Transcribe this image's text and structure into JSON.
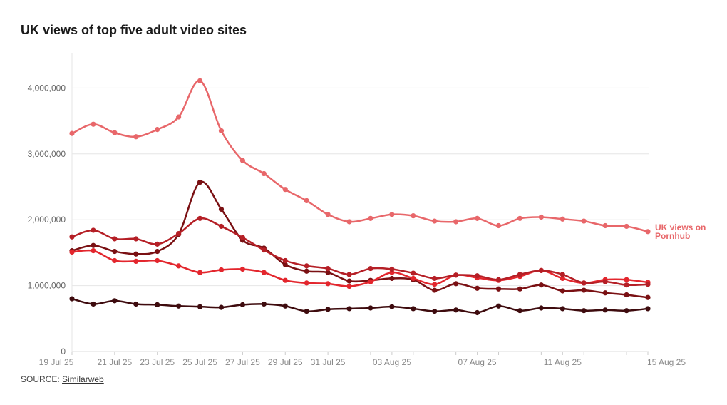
{
  "title": "UK views of top five adult video sites",
  "source_label": "SOURCE:",
  "source_name": "Similarweb",
  "chart_data": {
    "type": "line",
    "title": "UK views of top five adult video sites",
    "xlabel": "",
    "ylabel": "",
    "ylim": [
      0,
      4500000
    ],
    "yticks": [
      0,
      1000000,
      2000000,
      3000000,
      4000000
    ],
    "ytick_labels": [
      "0",
      "1,000,000",
      "2,000,000",
      "3,000,000",
      "4,000,000"
    ],
    "x_tick_labels": [
      {
        "index": 0,
        "label": "19 Jul 25"
      },
      {
        "index": 2,
        "label": "21 Jul 25"
      },
      {
        "index": 4,
        "label": "23 Jul 25"
      },
      {
        "index": 6,
        "label": "25 Jul 25"
      },
      {
        "index": 8,
        "label": "27 Jul 25"
      },
      {
        "index": 10,
        "label": "29 Jul 25"
      },
      {
        "index": 12,
        "label": "31 Jul 25"
      },
      {
        "index": 15,
        "label": "03 Aug 25"
      },
      {
        "index": 19,
        "label": "07 Aug 25"
      },
      {
        "index": 23,
        "label": "11 Aug 25"
      },
      {
        "index": 27,
        "label": "15 Aug 25"
      }
    ],
    "n_points": 28,
    "grid": true,
    "series": [
      {
        "label": "UK views on Pornhub",
        "color": "#e8676a",
        "values": [
          3310000,
          3450000,
          3320000,
          3260000,
          3370000,
          3560000,
          4110000,
          3350000,
          2900000,
          2700000,
          2460000,
          2290000,
          2080000,
          1970000,
          2020000,
          2080000,
          2060000,
          1980000,
          1970000,
          2020000,
          1910000,
          2020000,
          2040000,
          2010000,
          1980000,
          1910000,
          1900000,
          1820000
        ]
      },
      {
        "color": "#b51f26",
        "values": [
          1740000,
          1840000,
          1710000,
          1710000,
          1630000,
          1790000,
          2020000,
          1900000,
          1730000,
          1540000,
          1380000,
          1300000,
          1260000,
          1170000,
          1260000,
          1250000,
          1190000,
          1110000,
          1160000,
          1150000,
          1090000,
          1170000,
          1230000,
          1170000,
          1040000,
          1060000,
          1010000,
          1020000
        ]
      },
      {
        "color": "#e3262d",
        "values": [
          1510000,
          1530000,
          1380000,
          1370000,
          1380000,
          1300000,
          1200000,
          1240000,
          1250000,
          1200000,
          1080000,
          1040000,
          1030000,
          990000,
          1060000,
          1200000,
          1110000,
          1020000,
          1160000,
          1120000,
          1080000,
          1140000,
          1230000,
          1110000,
          1040000,
          1090000,
          1090000,
          1050000
        ]
      },
      {
        "color": "#7a1013",
        "values": [
          1530000,
          1610000,
          1520000,
          1480000,
          1520000,
          1780000,
          2570000,
          2160000,
          1690000,
          1570000,
          1320000,
          1220000,
          1200000,
          1070000,
          1080000,
          1110000,
          1090000,
          930000,
          1030000,
          960000,
          950000,
          950000,
          1010000,
          920000,
          930000,
          890000,
          860000,
          820000
        ]
      },
      {
        "color": "#3e0b0e",
        "values": [
          800000,
          720000,
          770000,
          720000,
          710000,
          690000,
          680000,
          670000,
          710000,
          720000,
          690000,
          610000,
          640000,
          650000,
          660000,
          680000,
          650000,
          610000,
          630000,
          590000,
          690000,
          620000,
          660000,
          650000,
          620000,
          630000,
          620000,
          650000
        ]
      }
    ]
  }
}
